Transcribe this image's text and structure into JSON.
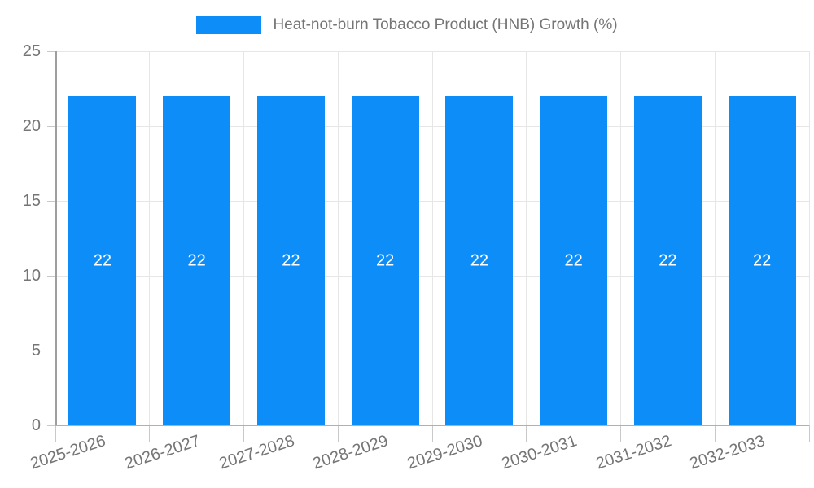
{
  "chart_data": {
    "type": "bar",
    "title": "",
    "legend_position": "top",
    "series": [
      {
        "name": "Heat-not-burn Tobacco Product (HNB) Growth (%)",
        "values": [
          22,
          22,
          22,
          22,
          22,
          22,
          22,
          22
        ]
      }
    ],
    "categories": [
      "2025-2026",
      "2026-2027",
      "2027-2028",
      "2028-2029",
      "2029-2030",
      "2030-2031",
      "2031-2032",
      "2032-2033"
    ],
    "value_labels": [
      "22",
      "22",
      "22",
      "22",
      "22",
      "22",
      "22",
      "22"
    ],
    "xlabel": "",
    "ylabel": "",
    "ylim": [
      0,
      25
    ],
    "yticks": [
      "0",
      "5",
      "10",
      "15",
      "20",
      "25"
    ],
    "grid": "on",
    "bar_color": "#0d8df8",
    "value_label_color": "#ffffff",
    "axis_text_color": "#757575"
  }
}
